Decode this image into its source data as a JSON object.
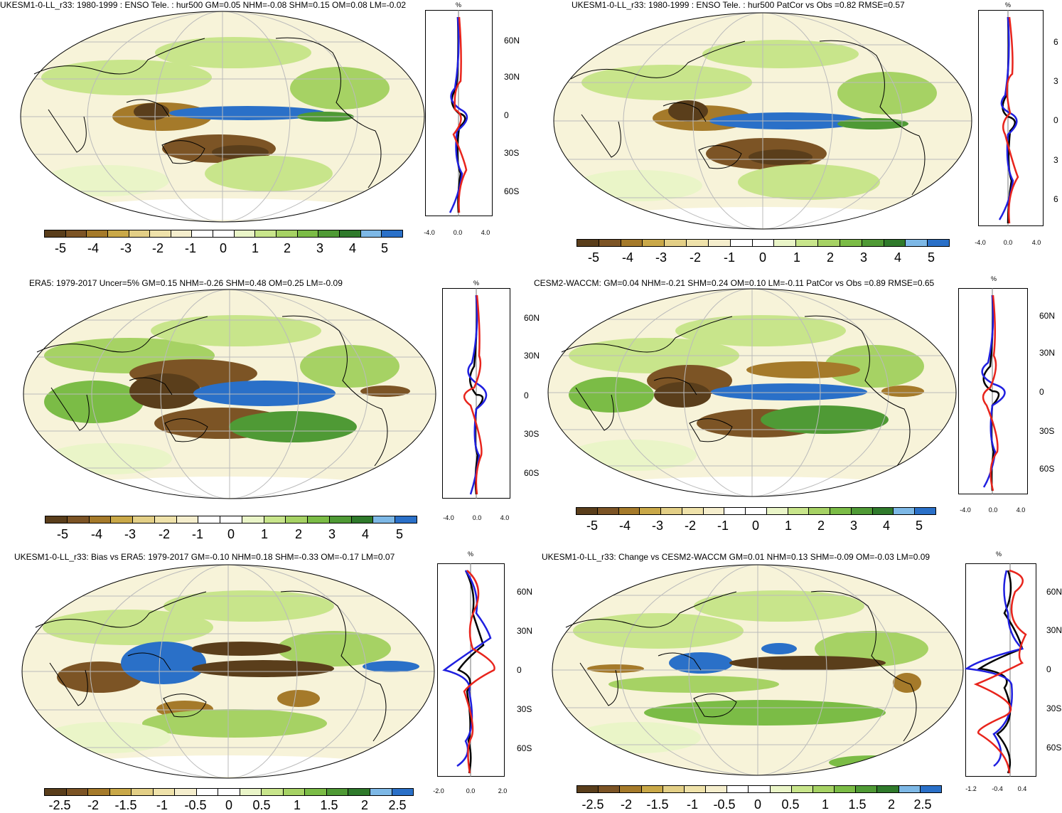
{
  "palette_main": [
    "#5a3e1b",
    "#7c5425",
    "#a57a2a",
    "#c9a848",
    "#e3cf86",
    "#efe2aa",
    "#f5eecd",
    "#ffffff",
    "#ffffff",
    "#eaf5c8",
    "#c8e58b",
    "#a6d264",
    "#7bbc46",
    "#4f9a35",
    "#2f7a2b",
    "#7db8e6",
    "#2a70c8"
  ],
  "palette_bias": [
    "#5a3e1b",
    "#7c5425",
    "#a57a2a",
    "#c9a848",
    "#e3cf86",
    "#efe2aa",
    "#f5eecd",
    "#ffffff",
    "#ffffff",
    "#eaf5c8",
    "#c8e58b",
    "#a6d264",
    "#7bbc46",
    "#4f9a35",
    "#2f7a2b",
    "#7db8e6",
    "#2a70c8"
  ],
  "colors": {
    "obs_black": "#000000",
    "red": "#e8241c",
    "blue": "#1f1fe0"
  },
  "panels": [
    {
      "id": "ukesm-enso",
      "title": "UKESM1-0-LL_r33: 1980-1999 : ENSO Tele. : hur500 GM=0.05 NHM=-0.08 SHM=0.15 OM=0.08 LM=-0.02",
      "pct_label": "%",
      "lat_labels": [
        "60N",
        "30N",
        "0",
        "30S",
        "60S"
      ],
      "x_ticks": [
        "-4.0",
        "0.0",
        "4.0"
      ],
      "cbar_labels": [
        "-5",
        "-4",
        "-3",
        "-2",
        "-1",
        "0",
        "1",
        "2",
        "3",
        "4",
        "5"
      ]
    },
    {
      "id": "ukesm-patcor",
      "title": "UKESM1-0-LL_r33: 1980-1999 : ENSO Tele. : hur500 PatCor vs Obs =0.82 RMSE=0.57",
      "pct_label": "%",
      "lat_labels": [
        "6",
        "3",
        "0",
        "3",
        "6"
      ],
      "x_ticks": [
        "-4.0",
        "0.0",
        "4.0"
      ],
      "cbar_labels": [
        "-5",
        "-4",
        "-3",
        "-2",
        "-1",
        "0",
        "1",
        "2",
        "3",
        "4",
        "5"
      ]
    },
    {
      "id": "era5",
      "title": "ERA5: 1979-2017 Uncer=5% GM=0.15 NHM=-0.26 SHM=0.48 OM=0.25 LM=-0.09",
      "pct_label": "%",
      "lat_labels": [
        "60N",
        "30N",
        "0",
        "30S",
        "60S"
      ],
      "x_ticks": [
        "-4.0",
        "0.0",
        "4.0"
      ],
      "cbar_labels": [
        "-5",
        "-4",
        "-3",
        "-2",
        "-1",
        "0",
        "1",
        "2",
        "3",
        "4",
        "5"
      ]
    },
    {
      "id": "cesm2",
      "title": "CESM2-WACCM: GM=0.04 NHM=-0.21 SHM=0.24 OM=0.10 LM=-0.11 PatCor vs Obs =0.89 RMSE=0.65",
      "pct_label": "%",
      "lat_labels": [
        "60N",
        "30N",
        "0",
        "30S",
        "60S"
      ],
      "x_ticks": [
        "-4.0",
        "0.0",
        "4.0"
      ],
      "cbar_labels": [
        "-5",
        "-4",
        "-3",
        "-2",
        "-1",
        "0",
        "1",
        "2",
        "3",
        "4",
        "5"
      ]
    },
    {
      "id": "ukesm-bias",
      "title": "UKESM1-0-LL_r33: Bias vs ERA5: 1979-2017 GM=-0.10 NHM=0.18 SHM=-0.33 OM=-0.17 LM=0.07",
      "pct_label": "%",
      "lat_labels": [
        "60N",
        "30N",
        "0",
        "30S",
        "60S"
      ],
      "x_ticks": [
        "-2.0",
        "0.0",
        "2.0"
      ],
      "cbar_labels": [
        "-2.5",
        "-2",
        "-1.5",
        "-1",
        "-0.5",
        "0",
        "0.5",
        "1",
        "1.5",
        "2",
        "2.5"
      ]
    },
    {
      "id": "ukesm-change",
      "title": "UKESM1-0-LL_r33: Change vs CESM2-WACCM GM=0.01 NHM=0.13 SHM=-0.09 OM=-0.03 LM=0.09",
      "pct_label": "%",
      "lat_labels": [
        "60N",
        "30N",
        "0",
        "30S",
        "60S"
      ],
      "x_ticks": [
        "-1.2",
        "-0.4",
        "0.4"
      ],
      "cbar_labels": [
        "-2.5",
        "-2",
        "-1.5",
        "-1",
        "-0.5",
        "0",
        "0.5",
        "1",
        "1.5",
        "2",
        "2.5"
      ]
    }
  ]
}
